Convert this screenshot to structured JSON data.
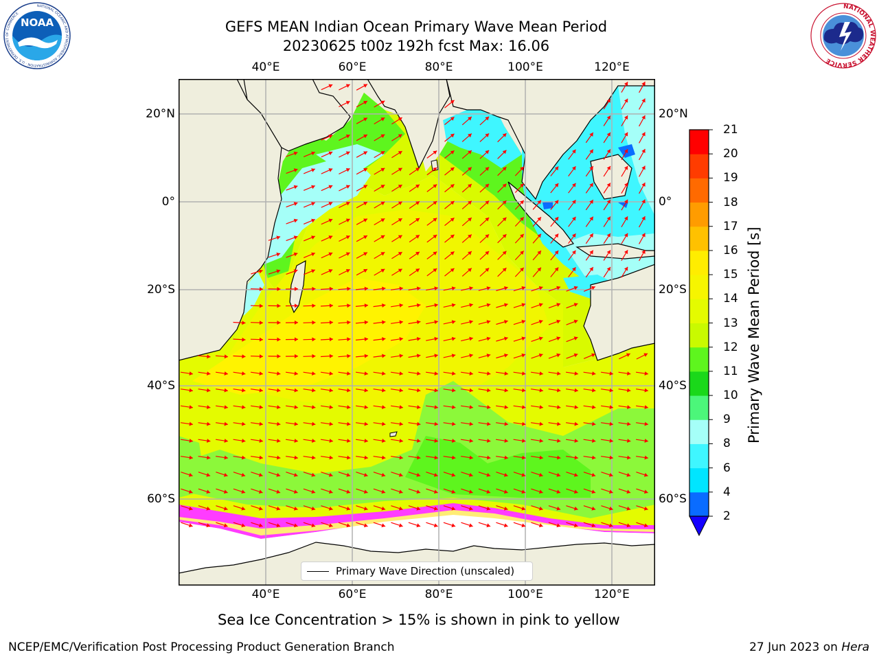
{
  "title": {
    "line1": "GEFS MEAN Indian Ocean Primary Wave Mean Period",
    "line2": "20230625 t00z 192h fcst   Max: 16.06"
  },
  "logos": {
    "noaa_text": "NOAA",
    "noaa_ring": "NATIONAL OCEANIC AND ATMOSPHERIC ADMINISTRATION · U.S. DEPARTMENT OF COMMERCE",
    "nws_ring": "NATIONAL WEATHER SERVICE"
  },
  "axes": {
    "lon_ticks": [
      "40°E",
      "60°E",
      "80°E",
      "100°E",
      "120°E"
    ],
    "lat_ticks": [
      "20°N",
      "0°",
      "20°S",
      "40°S",
      "60°S"
    ],
    "lon_range": [
      20,
      130
    ],
    "lat_range": [
      -72,
      28
    ]
  },
  "legend": {
    "label": "Primary Wave Direction (unscaled)",
    "arrow_color": "#ff0000"
  },
  "colorbar": {
    "label": "Primary Wave Mean Period [s]",
    "ticks": [
      "2",
      "4",
      "6",
      "8",
      "9",
      "10",
      "11",
      "12",
      "13",
      "14",
      "15",
      "16",
      "17",
      "18",
      "19",
      "20",
      "21"
    ],
    "colors": [
      "#0a6cff",
      "#00e5ff",
      "#3ff6ff",
      "#a5fff8",
      "#4cf67a",
      "#1ad81a",
      "#5ef51e",
      "#c9fa00",
      "#e4fb00",
      "#f6f500",
      "#ffed00",
      "#ffc100",
      "#ff9c00",
      "#ff6a00",
      "#ff3c00",
      "#ff0000"
    ],
    "under_color": "#1400ff"
  },
  "caption": "Sea Ice Concentration > 15% is shown in pink to yellow",
  "footer": {
    "left": "NCEP/EMC/Verification Post Processing Product Generation Branch",
    "right_date": "27 Jun 2023 on ",
    "right_host": "Hera"
  },
  "map": {
    "land_color": "#efeedd",
    "ice_edge_colors": [
      "#ff3cff",
      "#ff9cff",
      "#ffff66"
    ],
    "grid_color": "#b0b0b0"
  }
}
